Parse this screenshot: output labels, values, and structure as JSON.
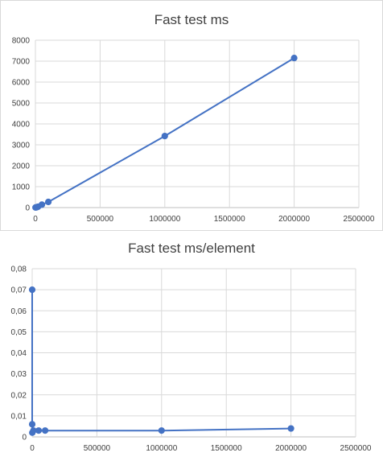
{
  "chart_data": [
    {
      "type": "scatter",
      "title": "Fast test ms",
      "xlabel": "",
      "ylabel": "",
      "x": [
        1000,
        10000,
        20000,
        50000,
        100000,
        1000000,
        2000000
      ],
      "y": [
        5,
        15,
        40,
        140,
        270,
        3420,
        7150
      ],
      "xlim": [
        0,
        2500000
      ],
      "ylim": [
        0,
        8000
      ],
      "xticks": [
        "0",
        "500000",
        "1000000",
        "1500000",
        "2000000",
        "2500000"
      ],
      "yticks": [
        "0",
        "1000",
        "2000",
        "3000",
        "4000",
        "5000",
        "6000",
        "7000",
        "8000"
      ],
      "grid": true,
      "line": true,
      "color": "#4472c4"
    },
    {
      "type": "scatter",
      "title": "Fast test ms/element",
      "xlabel": "",
      "ylabel": "",
      "x": [
        10,
        100,
        1000,
        10000,
        50000,
        100000,
        1000000,
        2000000
      ],
      "y": [
        0.07,
        0.006,
        0.002,
        0.003,
        0.003,
        0.003,
        0.003,
        0.004
      ],
      "xlim": [
        0,
        2500000
      ],
      "ylim": [
        0,
        0.08
      ],
      "xticks": [
        "0",
        "500000",
        "1000000",
        "1500000",
        "2000000",
        "2500000"
      ],
      "yticks": [
        "0",
        "0,01",
        "0,02",
        "0,03",
        "0,04",
        "0,05",
        "0,06",
        "0,07",
        "0,08"
      ],
      "grid": true,
      "line": true,
      "color": "#4472c4"
    }
  ]
}
